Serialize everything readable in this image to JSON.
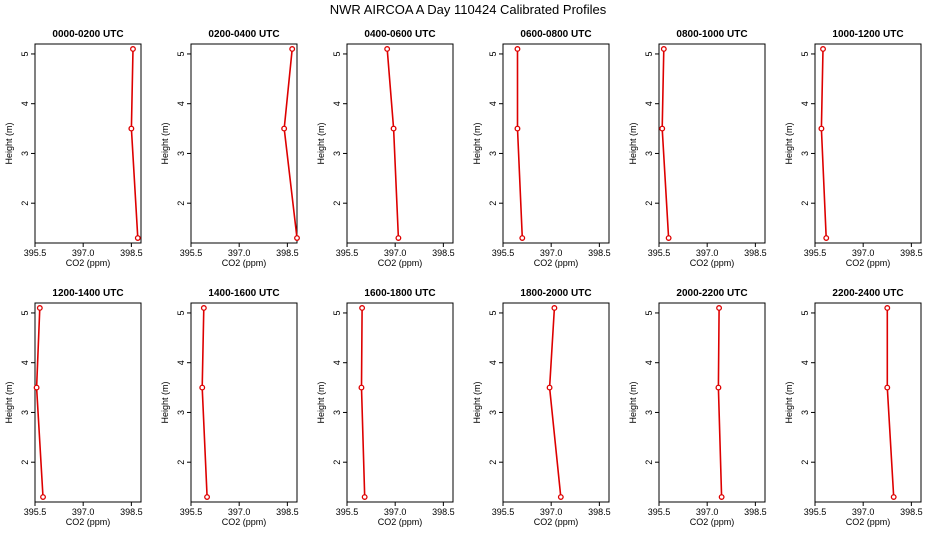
{
  "figure_title": "NWR AIRCOA A  Day 110424  Calibrated Profiles",
  "colors": {
    "line": "#dd0000",
    "frame": "#000000",
    "background": "#ffffff"
  },
  "chart_data": [
    {
      "type": "line",
      "title": "0000-0200 UTC",
      "xlabel": "CO2 (ppm)",
      "ylabel": "Height (m)",
      "xlim": [
        395.5,
        398.8
      ],
      "ylim": [
        1.2,
        5.2
      ],
      "x_ticks": [
        395.5,
        397.0,
        398.5
      ],
      "x_tick_labels": [
        "395.5",
        "397.0",
        "398.5"
      ],
      "y_ticks": [
        2,
        3,
        4,
        5
      ],
      "y_tick_labels": [
        "2",
        "3",
        "4",
        "5"
      ],
      "series": [
        {
          "name": "profile",
          "x": [
            398.7,
            398.5,
            398.55
          ],
          "y": [
            1.3,
            3.5,
            5.1
          ]
        }
      ]
    },
    {
      "type": "line",
      "title": "0200-0400 UTC",
      "xlabel": "CO2 (ppm)",
      "ylabel": "Height (m)",
      "xlim": [
        395.5,
        398.8
      ],
      "ylim": [
        1.2,
        5.2
      ],
      "x_ticks": [
        395.5,
        397.0,
        398.5
      ],
      "x_tick_labels": [
        "395.5",
        "397.0",
        "398.5"
      ],
      "y_ticks": [
        2,
        3,
        4,
        5
      ],
      "y_tick_labels": [
        "2",
        "3",
        "4",
        "5"
      ],
      "series": [
        {
          "name": "profile",
          "x": [
            398.8,
            398.4,
            398.65
          ],
          "y": [
            1.3,
            3.5,
            5.1
          ]
        }
      ]
    },
    {
      "type": "line",
      "title": "0400-0600 UTC",
      "xlabel": "CO2 (ppm)",
      "ylabel": "Height (m)",
      "xlim": [
        395.5,
        398.8
      ],
      "ylim": [
        1.2,
        5.2
      ],
      "x_ticks": [
        395.5,
        397.0,
        398.5
      ],
      "x_tick_labels": [
        "395.5",
        "397.0",
        "398.5"
      ],
      "y_ticks": [
        2,
        3,
        4,
        5
      ],
      "y_tick_labels": [
        "2",
        "3",
        "4",
        "5"
      ],
      "series": [
        {
          "name": "profile",
          "x": [
            397.1,
            396.95,
            396.75
          ],
          "y": [
            1.3,
            3.5,
            5.1
          ]
        }
      ]
    },
    {
      "type": "line",
      "title": "0600-0800 UTC",
      "xlabel": "CO2 (ppm)",
      "ylabel": "Height (m)",
      "xlim": [
        395.5,
        398.8
      ],
      "ylim": [
        1.2,
        5.2
      ],
      "x_ticks": [
        395.5,
        397.0,
        398.5
      ],
      "x_tick_labels": [
        "395.5",
        "397.0",
        "398.5"
      ],
      "y_ticks": [
        2,
        3,
        4,
        5
      ],
      "y_tick_labels": [
        "2",
        "3",
        "4",
        "5"
      ],
      "series": [
        {
          "name": "profile",
          "x": [
            396.1,
            395.95,
            395.95
          ],
          "y": [
            1.3,
            3.5,
            5.1
          ]
        }
      ]
    },
    {
      "type": "line",
      "title": "0800-1000 UTC",
      "xlabel": "CO2 (ppm)",
      "ylabel": "Height (m)",
      "xlim": [
        395.5,
        398.8
      ],
      "ylim": [
        1.2,
        5.2
      ],
      "x_ticks": [
        395.5,
        397.0,
        398.5
      ],
      "x_tick_labels": [
        "395.5",
        "397.0",
        "398.5"
      ],
      "y_ticks": [
        2,
        3,
        4,
        5
      ],
      "y_tick_labels": [
        "2",
        "3",
        "4",
        "5"
      ],
      "series": [
        {
          "name": "profile",
          "x": [
            395.8,
            395.6,
            395.65
          ],
          "y": [
            1.3,
            3.5,
            5.1
          ]
        }
      ]
    },
    {
      "type": "line",
      "title": "1000-1200 UTC",
      "xlabel": "CO2 (ppm)",
      "ylabel": "Height (m)",
      "xlim": [
        395.5,
        398.8
      ],
      "ylim": [
        1.2,
        5.2
      ],
      "x_ticks": [
        395.5,
        397.0,
        398.5
      ],
      "x_tick_labels": [
        "395.5",
        "397.0",
        "398.5"
      ],
      "y_ticks": [
        2,
        3,
        4,
        5
      ],
      "y_tick_labels": [
        "2",
        "3",
        "4",
        "5"
      ],
      "series": [
        {
          "name": "profile",
          "x": [
            395.85,
            395.7,
            395.75
          ],
          "y": [
            1.3,
            3.5,
            5.1
          ]
        }
      ]
    },
    {
      "type": "line",
      "title": "1200-1400 UTC",
      "xlabel": "CO2 (ppm)",
      "ylabel": "Height (m)",
      "xlim": [
        395.5,
        398.8
      ],
      "ylim": [
        1.2,
        5.2
      ],
      "x_ticks": [
        395.5,
        397.0,
        398.5
      ],
      "x_tick_labels": [
        "395.5",
        "397.0",
        "398.5"
      ],
      "y_ticks": [
        2,
        3,
        4,
        5
      ],
      "y_tick_labels": [
        "2",
        "3",
        "4",
        "5"
      ],
      "series": [
        {
          "name": "profile",
          "x": [
            395.75,
            395.55,
            395.65
          ],
          "y": [
            1.3,
            3.5,
            5.1
          ]
        }
      ]
    },
    {
      "type": "line",
      "title": "1400-1600 UTC",
      "xlabel": "CO2 (ppm)",
      "ylabel": "Height (m)",
      "xlim": [
        395.5,
        398.8
      ],
      "ylim": [
        1.2,
        5.2
      ],
      "x_ticks": [
        395.5,
        397.0,
        398.5
      ],
      "x_tick_labels": [
        "395.5",
        "397.0",
        "398.5"
      ],
      "y_ticks": [
        2,
        3,
        4,
        5
      ],
      "y_tick_labels": [
        "2",
        "3",
        "4",
        "5"
      ],
      "series": [
        {
          "name": "profile",
          "x": [
            396.0,
            395.85,
            395.9
          ],
          "y": [
            1.3,
            3.5,
            5.1
          ]
        }
      ]
    },
    {
      "type": "line",
      "title": "1600-1800 UTC",
      "xlabel": "CO2 (ppm)",
      "ylabel": "Height (m)",
      "xlim": [
        395.5,
        398.8
      ],
      "ylim": [
        1.2,
        5.2
      ],
      "x_ticks": [
        395.5,
        397.0,
        398.5
      ],
      "x_tick_labels": [
        "395.5",
        "397.0",
        "398.5"
      ],
      "y_ticks": [
        2,
        3,
        4,
        5
      ],
      "y_tick_labels": [
        "2",
        "3",
        "4",
        "5"
      ],
      "series": [
        {
          "name": "profile",
          "x": [
            396.05,
            395.95,
            395.97
          ],
          "y": [
            1.3,
            3.5,
            5.1
          ]
        }
      ]
    },
    {
      "type": "line",
      "title": "1800-2000 UTC",
      "xlabel": "CO2 (ppm)",
      "ylabel": "Height (m)",
      "xlim": [
        395.5,
        398.8
      ],
      "ylim": [
        1.2,
        5.2
      ],
      "x_ticks": [
        395.5,
        397.0,
        398.5
      ],
      "x_tick_labels": [
        "395.5",
        "397.0",
        "398.5"
      ],
      "y_ticks": [
        2,
        3,
        4,
        5
      ],
      "y_tick_labels": [
        "2",
        "3",
        "4",
        "5"
      ],
      "series": [
        {
          "name": "profile",
          "x": [
            397.3,
            396.95,
            397.1
          ],
          "y": [
            1.3,
            3.5,
            5.1
          ]
        }
      ]
    },
    {
      "type": "line",
      "title": "2000-2200 UTC",
      "xlabel": "CO2 (ppm)",
      "ylabel": "Height (m)",
      "xlim": [
        395.5,
        398.8
      ],
      "ylim": [
        1.2,
        5.2
      ],
      "x_ticks": [
        395.5,
        397.0,
        398.5
      ],
      "x_tick_labels": [
        "395.5",
        "397.0",
        "398.5"
      ],
      "y_ticks": [
        2,
        3,
        4,
        5
      ],
      "y_tick_labels": [
        "2",
        "3",
        "4",
        "5"
      ],
      "series": [
        {
          "name": "profile",
          "x": [
            397.45,
            397.35,
            397.37
          ],
          "y": [
            1.3,
            3.5,
            5.1
          ]
        }
      ]
    },
    {
      "type": "line",
      "title": "2200-2400 UTC",
      "xlabel": "CO2 (ppm)",
      "ylabel": "Height (m)",
      "xlim": [
        395.5,
        398.8
      ],
      "ylim": [
        1.2,
        5.2
      ],
      "x_ticks": [
        395.5,
        397.0,
        398.5
      ],
      "x_tick_labels": [
        "395.5",
        "397.0",
        "398.5"
      ],
      "y_ticks": [
        2,
        3,
        4,
        5
      ],
      "y_tick_labels": [
        "2",
        "3",
        "4",
        "5"
      ],
      "series": [
        {
          "name": "profile",
          "x": [
            397.95,
            397.75,
            397.75
          ],
          "y": [
            1.3,
            3.5,
            5.1
          ]
        }
      ]
    }
  ]
}
